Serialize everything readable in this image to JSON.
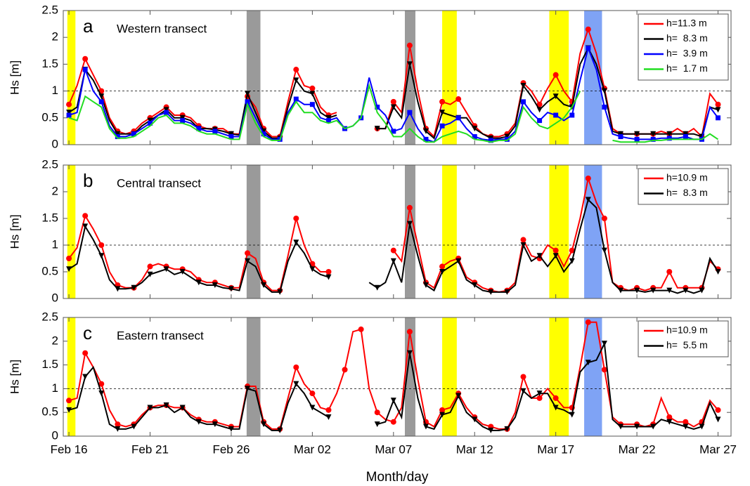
{
  "chart_data": [
    {
      "type": "line",
      "label": "a",
      "title": "Western transect",
      "ylabel": "Hs [m]",
      "xlim": [
        -0.35,
        40.8
      ],
      "xticks": [
        0,
        5,
        10,
        15,
        20,
        25,
        30,
        35,
        40
      ],
      "ylim": [
        0,
        2.5
      ],
      "yticks": [
        0,
        0.5,
        1,
        1.5,
        2,
        2.5
      ],
      "reference_line": 1,
      "bands": [
        {
          "xmin": -0.1,
          "xmax": 0.4,
          "color": "#ffff00"
        },
        {
          "xmin": 10.95,
          "xmax": 11.8,
          "color": "#9a9a9a"
        },
        {
          "xmin": 20.7,
          "xmax": 21.35,
          "color": "#9a9a9a"
        },
        {
          "xmin": 23.0,
          "xmax": 23.9,
          "color": "#ffff00"
        },
        {
          "xmin": 29.6,
          "xmax": 30.8,
          "color": "#ffff00"
        },
        {
          "xmin": 31.75,
          "xmax": 32.85,
          "color": "#7fa3f5"
        }
      ],
      "x": [
        0,
        0.5,
        1,
        1.5,
        2,
        2.5,
        3,
        3.5,
        4,
        4.5,
        5,
        5.5,
        6,
        6.5,
        7,
        7.5,
        8,
        8.5,
        9,
        9.5,
        10,
        10.5,
        11,
        11.5,
        12,
        12.5,
        13,
        13.5,
        14,
        14.5,
        15,
        15.5,
        16,
        16.5,
        17,
        17.5,
        18,
        18.5,
        19,
        19.5,
        20,
        20.5,
        21,
        21.5,
        22,
        22.5,
        23,
        23.5,
        24,
        24.5,
        25,
        25.5,
        26,
        26.5,
        27,
        27.5,
        28,
        28.5,
        29,
        29.5,
        30,
        30.5,
        31,
        31.5,
        32,
        32.5,
        33,
        33.5,
        34,
        34.5,
        35,
        35.5,
        36,
        36.5,
        37,
        37.5,
        38,
        38.5,
        39,
        39.5,
        40
      ],
      "series": [
        {
          "name": "h=11.3 m",
          "color": "#ff0000",
          "marker": "circle",
          "values": [
            0.75,
            1.1,
            1.6,
            1.3,
            1.0,
            0.5,
            0.25,
            0.2,
            0.25,
            0.4,
            0.5,
            0.6,
            0.7,
            0.55,
            0.55,
            0.5,
            0.35,
            0.3,
            0.3,
            0.3,
            0.2,
            0.2,
            0.9,
            0.7,
            0.3,
            0.15,
            0.15,
            0.8,
            1.4,
            1.1,
            1.05,
            0.7,
            0.55,
            0.6,
            null,
            null,
            null,
            null,
            0.3,
            0.3,
            0.8,
            0.6,
            1.85,
            1.0,
            0.3,
            0.15,
            0.8,
            0.75,
            0.85,
            0.6,
            0.35,
            0.2,
            0.15,
            0.15,
            0.2,
            0.4,
            1.15,
            1.0,
            0.75,
            1.05,
            1.3,
            1.0,
            0.8,
            1.7,
            2.15,
            1.7,
            1.05,
            0.3,
            0.2,
            0.2,
            0.2,
            0.2,
            0.2,
            0.25,
            0.2,
            0.3,
            0.2,
            0.3,
            0.15,
            0.95,
            0.75
          ]
        },
        {
          "name": "h=  8.3 m",
          "color": "#000000",
          "marker": "triangle",
          "values": [
            0.6,
            0.7,
            1.4,
            1.2,
            0.9,
            0.45,
            0.2,
            0.2,
            0.2,
            0.35,
            0.45,
            0.55,
            0.65,
            0.5,
            0.5,
            0.45,
            0.3,
            0.3,
            0.28,
            0.25,
            0.2,
            0.18,
            0.95,
            0.6,
            0.25,
            0.12,
            0.12,
            0.7,
            1.2,
            1.0,
            0.95,
            0.6,
            0.5,
            0.55,
            null,
            null,
            null,
            null,
            0.3,
            0.3,
            0.7,
            0.5,
            1.5,
            0.8,
            0.25,
            0.12,
            0.6,
            0.55,
            0.5,
            0.5,
            0.3,
            0.2,
            0.12,
            0.12,
            0.15,
            0.35,
            1.1,
            0.9,
            0.65,
            0.8,
            0.9,
            0.75,
            0.7,
            1.5,
            1.8,
            1.5,
            1.0,
            0.25,
            0.2,
            0.2,
            0.2,
            0.2,
            0.2,
            0.2,
            0.2,
            0.2,
            0.2,
            0.2,
            0.15,
            0.7,
            0.65
          ]
        },
        {
          "name": "h=  3.9 m",
          "color": "#0000ff",
          "marker": "square",
          "values": [
            0.55,
            0.6,
            1.4,
            1.0,
            0.8,
            0.35,
            0.15,
            0.15,
            0.2,
            0.3,
            0.4,
            0.55,
            0.6,
            0.45,
            0.45,
            0.4,
            0.3,
            0.25,
            0.25,
            0.2,
            0.15,
            0.15,
            0.8,
            0.5,
            0.2,
            0.1,
            0.1,
            0.6,
            0.85,
            0.75,
            0.75,
            0.5,
            0.45,
            0.5,
            0.3,
            0.35,
            0.5,
            1.25,
            0.7,
            0.55,
            0.25,
            0.3,
            0.6,
            0.3,
            0.1,
            0.05,
            0.35,
            0.4,
            0.5,
            0.3,
            0.15,
            0.1,
            0.08,
            0.1,
            0.1,
            0.25,
            0.8,
            0.6,
            0.45,
            0.6,
            0.55,
            0.45,
            0.55,
            1.2,
            1.8,
            1.4,
            0.7,
            0.2,
            0.15,
            0.12,
            0.1,
            0.1,
            0.1,
            0.12,
            0.12,
            0.12,
            0.15,
            0.1,
            0.1,
            0.7,
            0.5
          ]
        },
        {
          "name": "h=  1.7 m",
          "color": "#22dd22",
          "values": [
            0.5,
            0.45,
            0.9,
            0.8,
            0.7,
            0.3,
            0.12,
            0.12,
            0.15,
            0.25,
            0.35,
            0.5,
            0.55,
            0.4,
            0.4,
            0.35,
            0.25,
            0.2,
            0.2,
            0.15,
            0.1,
            0.1,
            0.75,
            0.4,
            0.15,
            0.08,
            0.08,
            0.55,
            0.8,
            0.6,
            0.6,
            0.45,
            0.4,
            0.45,
            0.3,
            0.35,
            0.5,
            1.1,
            0.6,
            0.4,
            0.15,
            0.15,
            0.3,
            0.15,
            0.05,
            0.05,
            0.15,
            0.2,
            0.25,
            0.2,
            0.1,
            0.08,
            0.05,
            0.08,
            0.08,
            0.2,
            0.7,
            0.5,
            0.35,
            0.3,
            0.4,
            0.5,
            0.7,
            1.0,
            null,
            null,
            null,
            0.08,
            0.05,
            0.05,
            0.05,
            0.05,
            0.08,
            0.08,
            0.1,
            0.1,
            0.1,
            0.1,
            0.1,
            0.2,
            0.1
          ]
        }
      ]
    },
    {
      "type": "line",
      "label": "b",
      "title": "Central transect",
      "ylabel": "Hs [m]",
      "xlim": [
        -0.35,
        40.8
      ],
      "xticks": [
        0,
        5,
        10,
        15,
        20,
        25,
        30,
        35,
        40
      ],
      "ylim": [
        0,
        2.5
      ],
      "yticks": [
        0,
        0.5,
        1,
        1.5,
        2,
        2.5
      ],
      "reference_line": 1,
      "bands": [
        {
          "xmin": -0.1,
          "xmax": 0.4,
          "color": "#ffff00"
        },
        {
          "xmin": 10.95,
          "xmax": 11.8,
          "color": "#9a9a9a"
        },
        {
          "xmin": 20.7,
          "xmax": 21.35,
          "color": "#9a9a9a"
        },
        {
          "xmin": 23.0,
          "xmax": 23.9,
          "color": "#ffff00"
        },
        {
          "xmin": 29.6,
          "xmax": 30.8,
          "color": "#ffff00"
        },
        {
          "xmin": 31.75,
          "xmax": 32.85,
          "color": "#7fa3f5"
        }
      ],
      "x": [
        0,
        0.5,
        1,
        1.5,
        2,
        2.5,
        3,
        3.5,
        4,
        4.5,
        5,
        5.5,
        6,
        6.5,
        7,
        7.5,
        8,
        8.5,
        9,
        9.5,
        10,
        10.5,
        11,
        11.5,
        12,
        12.5,
        13,
        13.5,
        14,
        14.5,
        15,
        15.5,
        16,
        16.5,
        17,
        17.5,
        18,
        18.5,
        19,
        19.5,
        20,
        20.5,
        21,
        21.5,
        22,
        22.5,
        23,
        23.5,
        24,
        24.5,
        25,
        25.5,
        26,
        26.5,
        27,
        27.5,
        28,
        28.5,
        29,
        29.5,
        30,
        30.5,
        31,
        31.5,
        32,
        32.5,
        33,
        33.5,
        34,
        34.5,
        35,
        35.5,
        36,
        36.5,
        37,
        37.5,
        38,
        38.5,
        39,
        39.5,
        40
      ],
      "series": [
        {
          "name": "h=10.9 m",
          "color": "#ff0000",
          "marker": "circle",
          "values": [
            0.75,
            0.95,
            1.55,
            1.3,
            1.0,
            0.5,
            0.25,
            0.2,
            0.2,
            0.35,
            0.6,
            0.65,
            0.6,
            0.55,
            0.55,
            0.5,
            0.35,
            0.3,
            0.3,
            0.25,
            0.2,
            0.2,
            0.85,
            0.75,
            0.3,
            0.15,
            0.15,
            0.8,
            1.5,
            1.0,
            0.65,
            0.5,
            0.5,
            null,
            null,
            null,
            null,
            null,
            null,
            null,
            0.9,
            0.7,
            1.7,
            1.0,
            0.3,
            0.2,
            0.6,
            0.7,
            0.75,
            0.4,
            0.3,
            0.2,
            0.15,
            0.12,
            0.15,
            0.3,
            1.1,
            0.8,
            0.75,
            1.0,
            0.9,
            0.6,
            0.9,
            1.5,
            2.25,
            1.8,
            1.5,
            0.3,
            0.2,
            0.15,
            0.2,
            0.15,
            0.2,
            0.2,
            0.5,
            0.2,
            0.2,
            0.2,
            0.2,
            0.7,
            0.55
          ]
        },
        {
          "name": "h=  8.3 m",
          "color": "#000000",
          "marker": "triangle",
          "values": [
            0.55,
            0.65,
            1.35,
            1.1,
            0.8,
            0.35,
            0.18,
            0.18,
            0.2,
            0.3,
            0.45,
            0.5,
            0.55,
            0.45,
            0.5,
            0.4,
            0.3,
            0.25,
            0.25,
            0.2,
            0.18,
            0.15,
            0.7,
            0.6,
            0.25,
            0.12,
            0.12,
            0.7,
            1.05,
            0.85,
            0.55,
            0.45,
            0.4,
            null,
            null,
            null,
            null,
            0.3,
            0.2,
            0.3,
            0.7,
            0.3,
            1.4,
            0.8,
            0.25,
            0.15,
            0.5,
            0.6,
            0.7,
            0.35,
            0.25,
            0.15,
            0.12,
            0.12,
            0.12,
            0.25,
            1.0,
            0.7,
            0.8,
            0.6,
            0.8,
            0.5,
            0.7,
            1.3,
            1.85,
            1.7,
            0.9,
            0.3,
            0.15,
            0.15,
            0.15,
            0.12,
            0.15,
            0.15,
            0.15,
            0.1,
            0.15,
            0.1,
            0.15,
            0.75,
            0.5
          ]
        }
      ]
    },
    {
      "type": "line",
      "label": "c",
      "title": "Eastern transect",
      "ylabel": "Hs [m]",
      "xlabel": "Month/day",
      "xlim": [
        -0.35,
        40.8
      ],
      "xticks": [
        {
          "value": 0,
          "label": "Feb 16"
        },
        {
          "value": 5,
          "label": "Feb 21"
        },
        {
          "value": 10,
          "label": "Feb 26"
        },
        {
          "value": 15,
          "label": "Mar 02"
        },
        {
          "value": 20,
          "label": "Mar 07"
        },
        {
          "value": 25,
          "label": "Mar 12"
        },
        {
          "value": 30,
          "label": "Mar 17"
        },
        {
          "value": 35,
          "label": "Mar 22"
        },
        {
          "value": 40,
          "label": "Mar 27"
        }
      ],
      "ylim": [
        0,
        2.5
      ],
      "yticks": [
        0,
        0.5,
        1,
        1.5,
        2,
        2.5
      ],
      "reference_line": 1,
      "bands": [
        {
          "xmin": -0.1,
          "xmax": 0.4,
          "color": "#ffff00"
        },
        {
          "xmin": 10.95,
          "xmax": 11.8,
          "color": "#9a9a9a"
        },
        {
          "xmin": 20.7,
          "xmax": 21.35,
          "color": "#9a9a9a"
        },
        {
          "xmin": 23.0,
          "xmax": 23.9,
          "color": "#ffff00"
        },
        {
          "xmin": 29.6,
          "xmax": 30.8,
          "color": "#ffff00"
        },
        {
          "xmin": 31.75,
          "xmax": 32.85,
          "color": "#7fa3f5"
        }
      ],
      "x": [
        0,
        0.5,
        1,
        1.5,
        2,
        2.5,
        3,
        3.5,
        4,
        4.5,
        5,
        5.5,
        6,
        6.5,
        7,
        7.5,
        8,
        8.5,
        9,
        9.5,
        10,
        10.5,
        11,
        11.5,
        12,
        12.5,
        13,
        13.5,
        14,
        14.5,
        15,
        15.5,
        16,
        16.5,
        17,
        17.5,
        18,
        18.5,
        19,
        19.5,
        20,
        20.5,
        21,
        21.5,
        22,
        22.5,
        23,
        23.5,
        24,
        24.5,
        25,
        25.5,
        26,
        26.5,
        27,
        27.5,
        28,
        28.5,
        29,
        29.5,
        30,
        30.5,
        31,
        31.5,
        32,
        32.5,
        33,
        33.5,
        34,
        34.5,
        35,
        35.5,
        36,
        36.5,
        37,
        37.5,
        38,
        38.5,
        39,
        39.5,
        40
      ],
      "series": [
        {
          "name": "h=10.9 m",
          "color": "#ff0000",
          "marker": "circle",
          "values": [
            0.75,
            0.8,
            1.75,
            1.45,
            1.1,
            0.55,
            0.25,
            0.2,
            0.25,
            0.45,
            0.6,
            0.65,
            0.65,
            0.6,
            0.6,
            0.45,
            0.35,
            0.3,
            0.3,
            0.25,
            0.2,
            0.2,
            1.05,
            1.05,
            0.3,
            0.15,
            0.15,
            0.8,
            1.45,
            1.1,
            0.9,
            0.6,
            0.55,
            0.9,
            1.4,
            2.2,
            2.25,
            1.0,
            0.5,
            0.35,
            0.3,
            0.6,
            2.2,
            1.2,
            0.3,
            0.2,
            0.55,
            0.6,
            0.9,
            0.6,
            0.4,
            0.25,
            0.2,
            0.15,
            0.15,
            0.5,
            1.25,
            0.8,
            0.8,
            1.0,
            0.8,
            0.6,
            0.6,
            1.45,
            2.4,
            2.4,
            1.4,
            0.4,
            0.25,
            0.25,
            0.25,
            0.2,
            0.25,
            0.8,
            0.4,
            0.3,
            0.3,
            0.2,
            0.3,
            0.75,
            0.55
          ]
        },
        {
          "name": "h=  5.5 m",
          "color": "#000000",
          "marker": "triangle",
          "values": [
            0.55,
            0.6,
            1.25,
            1.45,
            0.9,
            0.25,
            0.15,
            0.15,
            0.2,
            0.4,
            0.6,
            0.6,
            0.65,
            0.5,
            0.6,
            0.4,
            0.3,
            0.25,
            0.25,
            0.2,
            0.15,
            0.15,
            1.0,
            0.95,
            0.25,
            0.12,
            0.12,
            0.7,
            1.1,
            0.9,
            0.6,
            0.5,
            0.4,
            null,
            null,
            null,
            null,
            null,
            0.25,
            0.3,
            0.75,
            0.4,
            1.75,
            0.8,
            0.2,
            0.15,
            0.45,
            0.5,
            0.85,
            0.5,
            0.35,
            0.2,
            0.12,
            0.12,
            0.15,
            0.4,
            0.95,
            0.8,
            0.9,
            0.9,
            0.6,
            0.55,
            0.45,
            1.35,
            1.55,
            1.6,
            1.95,
            0.35,
            0.2,
            0.2,
            0.2,
            0.2,
            0.2,
            0.35,
            0.3,
            0.25,
            0.2,
            0.15,
            0.2,
            0.7,
            0.35
          ]
        }
      ]
    }
  ]
}
